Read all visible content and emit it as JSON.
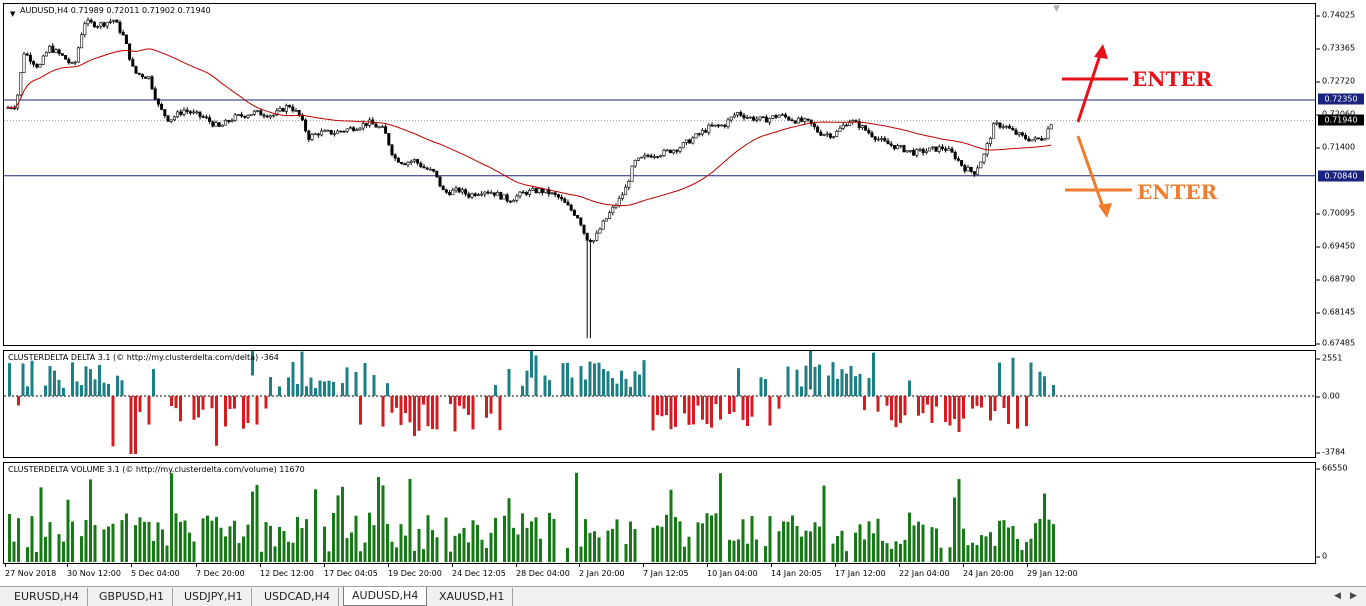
{
  "main_chart": {
    "title": "AUDUSD,H4  0.71989 0.72011 0.71902 0.71940",
    "price_ticks": [
      "0.74025",
      "0.73365",
      "0.72720",
      "0.72060",
      "0.71400",
      "0.70095",
      "0.69450",
      "0.68790",
      "0.68145",
      "0.67485"
    ],
    "levels": [
      {
        "price": 0.7235,
        "label": "0.72350",
        "color": "#1a237e"
      },
      {
        "price": 0.7084,
        "label": "0.70840",
        "color": "#1a237e"
      }
    ],
    "current_price_label": "0.71940",
    "current_price": 0.7194,
    "annotations": {
      "buy_label": "ENTER",
      "sell_label": "ENTER",
      "buy_color": "#e8111a",
      "sell_color": "#f07c2c"
    },
    "ma_color": "#c00000",
    "candle_color": "#000000"
  },
  "delta_indicator": {
    "title": "CLUSTERDELTA DELTA 3.1 (© http://my.clusterdelta.com/delta) -364",
    "ticks": [
      "2551",
      "0.00",
      "-3784"
    ],
    "positive_color": "#1b7f86",
    "negative_color": "#d01d20"
  },
  "volume_indicator": {
    "title": "CLUSTERDELTA VOLUME 3.1 (© http://my.clusterdelta.com/volume) 11670",
    "ticks": [
      "66550",
      "0"
    ],
    "bar_color": "#157a16"
  },
  "time_axis": {
    "labels": [
      "27 Nov 2018",
      "30 Nov 12:00",
      "5 Dec 04:00",
      "7 Dec 20:00",
      "12 Dec 12:00",
      "17 Dec 04:05",
      "19 Dec 20:00",
      "24 Dec 12:05",
      "28 Dec 04:00",
      "2 Jan 20:00",
      "7 Jan 12:05",
      "10 Jan 04:00",
      "14 Jan 20:05",
      "17 Jan 12:00",
      "22 Jan 04:00",
      "24 Jan 20:00",
      "29 Jan 12:00"
    ]
  },
  "tabs": {
    "items": [
      "EURUSD,H4",
      "GBPUSD,H1",
      "USDJPY,H1",
      "USDCAD,H4",
      "AUDUSD,H4",
      "XAUUSD,H1"
    ],
    "active": "AUDUSD,H4"
  },
  "chart_data": [
    {
      "type": "line",
      "title": "AUDUSD,H4  0.71989 0.72011 0.71902 0.71940",
      "x": [
        "27 Nov 2018",
        "30 Nov 12:00",
        "5 Dec 04:00",
        "7 Dec 20:00",
        "12 Dec 12:00",
        "17 Dec 04:05",
        "19 Dec 20:00",
        "24 Dec 12:05",
        "28 Dec 04:00",
        "2 Jan 20:00",
        "7 Jan 12:05",
        "10 Jan 04:00",
        "14 Jan 20:05",
        "17 Jan 12:00",
        "22 Jan 04:00",
        "24 Jan 20:00",
        "29 Jan 12:00"
      ],
      "series": [
        {
          "name": "",
          "values": [
            0.7225,
            0.739,
            0.72,
            0.7195,
            0.723,
            0.718,
            0.713,
            0.7055,
            0.7045,
            0.702,
            0.713,
            0.72,
            0.7205,
            0.719,
            0.714,
            0.7195,
            0.7194
          ]
        }
      ],
      "ylim": [
        0.67485,
        0.74025
      ]
    }
  ]
}
